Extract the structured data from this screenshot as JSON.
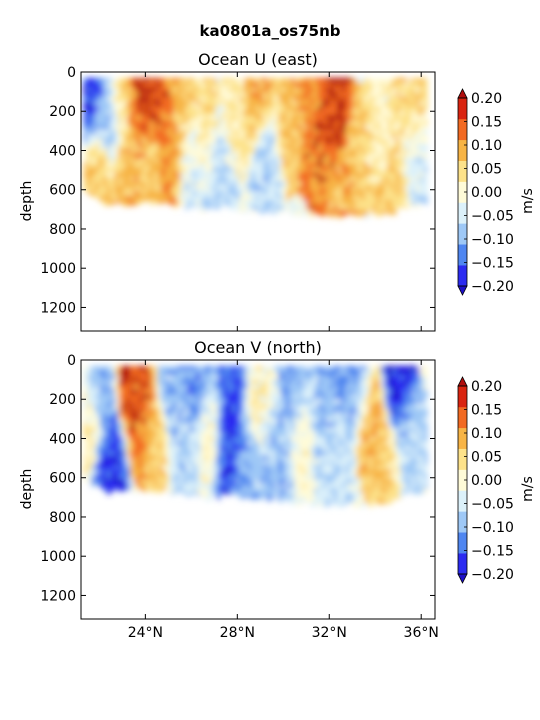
{
  "figure_title": "ka0801a_os75nb",
  "colormap": {
    "levels": [
      -0.2,
      -0.15,
      -0.1,
      -0.05,
      0.0,
      0.05,
      0.1,
      0.15,
      0.2
    ],
    "colors": [
      "#2b2bf0",
      "#4f86f0",
      "#9ec8f6",
      "#dcf1fa",
      "#fffbd8",
      "#fde28a",
      "#f7b445",
      "#f26a22",
      "#d92410"
    ],
    "under_color": "#1e10c8",
    "over_color": "#b00e0e",
    "units": "m/s",
    "tick_labels": [
      "-0.20",
      "-0.15",
      "-0.10",
      "-0.05",
      "0.00",
      "0.05",
      "0.10",
      "0.15",
      "0.20"
    ]
  },
  "chart_data": [
    {
      "type": "heatmap",
      "title": "Ocean U (east)",
      "ylabel": "depth",
      "xlabel": "",
      "xlim": [
        21.2,
        36.6
      ],
      "ylim": [
        1320,
        0
      ],
      "yticks": [
        0,
        200,
        400,
        600,
        800,
        1000,
        1200
      ],
      "xticks": [
        24,
        28,
        32,
        36
      ],
      "xtick_labels": [
        "24°N",
        "28°N",
        "32°N",
        "36°N"
      ],
      "colorbar_label": "m/s",
      "data_depth_range": [
        30,
        760
      ],
      "section_max_depth": [
        [
          21.3,
          620
        ],
        [
          21.8,
          650
        ],
        [
          22.2,
          680
        ],
        [
          23.0,
          690
        ],
        [
          24.0,
          680
        ],
        [
          25.0,
          690
        ],
        [
          26.0,
          700
        ],
        [
          26.5,
          720
        ],
        [
          27.5,
          700
        ],
        [
          28.5,
          720
        ],
        [
          29.5,
          720
        ],
        [
          30.5,
          740
        ],
        [
          31.5,
          750
        ],
        [
          32.5,
          750
        ],
        [
          33.5,
          750
        ],
        [
          34.5,
          740
        ],
        [
          35.5,
          700
        ],
        [
          36.0,
          690
        ]
      ],
      "features": [
        {
          "lat": 21.5,
          "depth": 150,
          "value": -0.17
        },
        {
          "lat": 21.9,
          "depth": 500,
          "value": 0.1
        },
        {
          "lat": 22.4,
          "depth": 220,
          "value": -0.1
        },
        {
          "lat": 23.0,
          "depth": 150,
          "value": 0.1
        },
        {
          "lat": 23.3,
          "depth": 450,
          "value": 0.12
        },
        {
          "lat": 23.9,
          "depth": 140,
          "value": 0.2
        },
        {
          "lat": 24.2,
          "depth": 520,
          "value": 0.1
        },
        {
          "lat": 24.8,
          "depth": 150,
          "value": 0.18
        },
        {
          "lat": 25.1,
          "depth": 400,
          "value": 0.16
        },
        {
          "lat": 25.5,
          "depth": 200,
          "value": 0.1
        },
        {
          "lat": 26.0,
          "depth": 450,
          "value": -0.04
        },
        {
          "lat": 26.5,
          "depth": 300,
          "value": 0.08
        },
        {
          "lat": 27.2,
          "depth": 500,
          "value": -0.05
        },
        {
          "lat": 28.0,
          "depth": 250,
          "value": 0.05
        },
        {
          "lat": 28.8,
          "depth": 150,
          "value": 0.13
        },
        {
          "lat": 29.3,
          "depth": 450,
          "value": -0.06
        },
        {
          "lat": 30.3,
          "depth": 300,
          "value": 0.1
        },
        {
          "lat": 30.9,
          "depth": 150,
          "value": 0.14
        },
        {
          "lat": 31.5,
          "depth": 400,
          "value": 0.17
        },
        {
          "lat": 32.3,
          "depth": 240,
          "value": 0.21
        },
        {
          "lat": 32.6,
          "depth": 600,
          "value": 0.12
        },
        {
          "lat": 33.3,
          "depth": 400,
          "value": 0.09
        },
        {
          "lat": 34.2,
          "depth": 300,
          "value": 0.04
        },
        {
          "lat": 34.8,
          "depth": 600,
          "value": 0.1
        },
        {
          "lat": 35.5,
          "depth": 150,
          "value": 0.08
        },
        {
          "lat": 35.8,
          "depth": 500,
          "value": -0.03
        }
      ]
    },
    {
      "type": "heatmap",
      "title": "Ocean V (north)",
      "ylabel": "depth",
      "xlabel": "",
      "xlim": [
        21.2,
        36.6
      ],
      "ylim": [
        1320,
        0
      ],
      "yticks": [
        0,
        200,
        400,
        600,
        800,
        1000,
        1200
      ],
      "xticks": [
        24,
        28,
        32,
        36
      ],
      "xtick_labels": [
        "24°N",
        "28°N",
        "32°N",
        "36°N"
      ],
      "colorbar_label": "m/s",
      "data_depth_range": [
        30,
        760
      ],
      "section_max_depth": [
        [
          21.3,
          620
        ],
        [
          21.8,
          650
        ],
        [
          22.2,
          680
        ],
        [
          23.0,
          690
        ],
        [
          24.0,
          680
        ],
        [
          25.0,
          690
        ],
        [
          26.0,
          700
        ],
        [
          26.5,
          720
        ],
        [
          27.5,
          700
        ],
        [
          28.5,
          720
        ],
        [
          29.5,
          720
        ],
        [
          30.5,
          740
        ],
        [
          31.5,
          750
        ],
        [
          32.5,
          750
        ],
        [
          33.5,
          750
        ],
        [
          34.5,
          740
        ],
        [
          35.5,
          700
        ],
        [
          36.0,
          690
        ]
      ],
      "features": [
        {
          "lat": 21.5,
          "depth": 300,
          "value": 0.06
        },
        {
          "lat": 22.0,
          "depth": 150,
          "value": -0.1
        },
        {
          "lat": 22.5,
          "depth": 550,
          "value": -0.17
        },
        {
          "lat": 23.5,
          "depth": 100,
          "value": 0.2
        },
        {
          "lat": 23.8,
          "depth": 300,
          "value": 0.17
        },
        {
          "lat": 24.4,
          "depth": 450,
          "value": 0.1
        },
        {
          "lat": 25.2,
          "depth": 200,
          "value": -0.08
        },
        {
          "lat": 25.7,
          "depth": 450,
          "value": -0.06
        },
        {
          "lat": 26.3,
          "depth": 150,
          "value": -0.12
        },
        {
          "lat": 26.8,
          "depth": 350,
          "value": 0.05
        },
        {
          "lat": 27.6,
          "depth": 420,
          "value": -0.19
        },
        {
          "lat": 27.7,
          "depth": 150,
          "value": -0.15
        },
        {
          "lat": 28.3,
          "depth": 550,
          "value": -0.09
        },
        {
          "lat": 29.0,
          "depth": 200,
          "value": 0.03
        },
        {
          "lat": 29.8,
          "depth": 450,
          "value": -0.08
        },
        {
          "lat": 30.5,
          "depth": 150,
          "value": -0.1
        },
        {
          "lat": 30.9,
          "depth": 350,
          "value": 0.04
        },
        {
          "lat": 31.6,
          "depth": 300,
          "value": -0.09
        },
        {
          "lat": 32.3,
          "depth": 500,
          "value": -0.04
        },
        {
          "lat": 33.2,
          "depth": 150,
          "value": -0.1
        },
        {
          "lat": 33.8,
          "depth": 300,
          "value": 0.14
        },
        {
          "lat": 34.3,
          "depth": 550,
          "value": 0.09
        },
        {
          "lat": 35.0,
          "depth": 80,
          "value": -0.19
        },
        {
          "lat": 35.6,
          "depth": 400,
          "value": -0.06
        }
      ]
    }
  ]
}
